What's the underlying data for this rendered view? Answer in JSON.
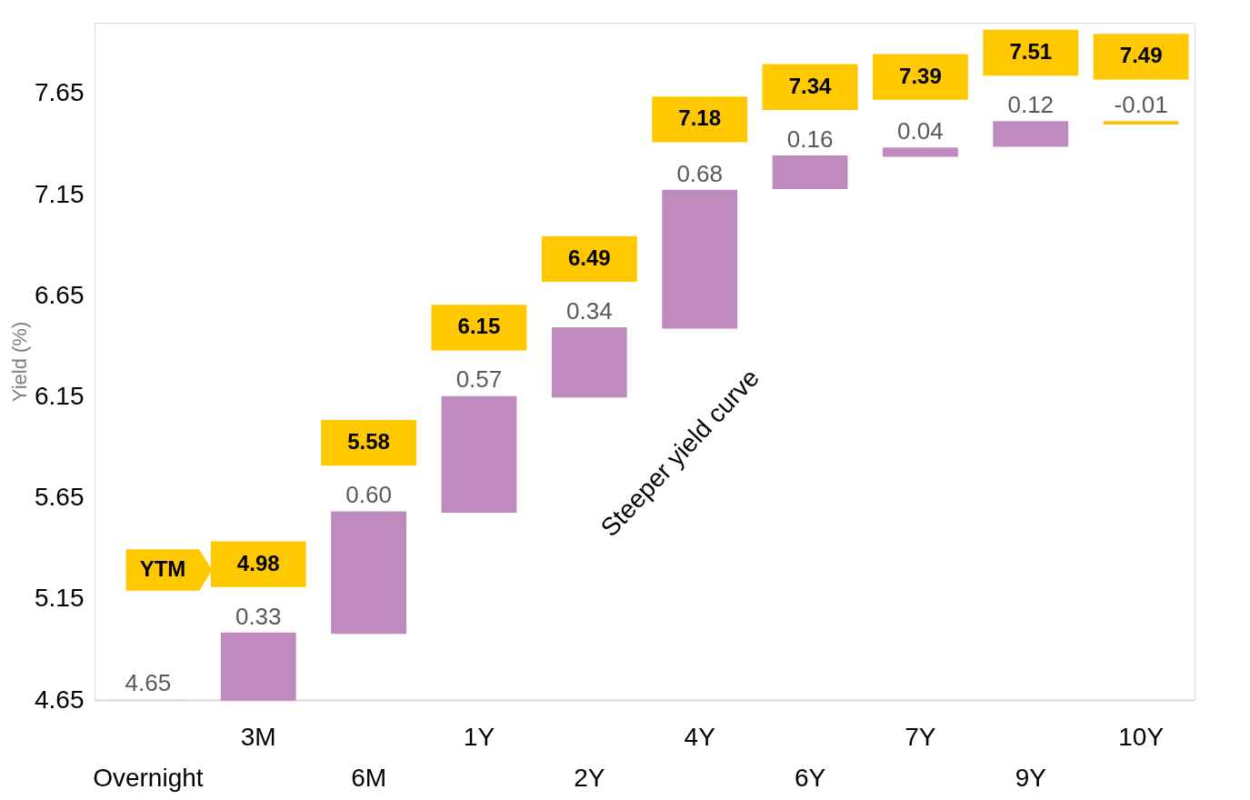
{
  "chart_data": {
    "type": "bar",
    "categories": [
      "Overnight",
      "3M",
      "6M",
      "1Y",
      "2Y",
      "4Y",
      "6Y",
      "7Y",
      "9Y",
      "10Y"
    ],
    "base": [
      4.65,
      4.65,
      4.98,
      5.58,
      6.15,
      6.49,
      7.18,
      7.34,
      7.39,
      7.51
    ],
    "values": [
      0,
      0.33,
      0.6,
      0.57,
      0.34,
      0.68,
      0.16,
      0.04,
      0.12,
      -0.01
    ],
    "colors": [
      "#d9d9d9",
      "#bf8bbf",
      "#bf8bbf",
      "#bf8bbf",
      "#bf8bbf",
      "#bf8bbf",
      "#bf8bbf",
      "#bf8bbf",
      "#bf8bbf",
      "#ffc000"
    ],
    "value_labels": [
      "4.65",
      "0.33",
      "0.60",
      "0.57",
      "0.34",
      "0.68",
      "0.16",
      "0.04",
      "0.12",
      "-0.01"
    ],
    "ylabel": "Yield (%)",
    "ylim": [
      4.65,
      8.0
    ],
    "yticks": [
      4.65,
      5.15,
      5.65,
      6.15,
      6.65,
      7.15,
      7.65
    ],
    "grid": false,
    "annotations": [
      {
        "text": "4.98",
        "x": "3M",
        "y": 4.98
      },
      {
        "text": "5.58",
        "x": "6M",
        "y": 5.58
      },
      {
        "text": "6.15",
        "x": "1Y",
        "y": 6.15
      },
      {
        "text": "6.49",
        "x": "2Y",
        "y": 6.49
      },
      {
        "text": "7.18",
        "x": "4Y",
        "y": 7.18
      },
      {
        "text": "7.34",
        "x": "6Y",
        "y": 7.34
      },
      {
        "text": "7.39",
        "x": "7Y",
        "y": 7.39
      },
      {
        "text": "7.51",
        "x": "9Y",
        "y": 7.51
      },
      {
        "text": "7.49",
        "x": "10Y",
        "y": 7.49
      },
      "YTM",
      "Steeper yield curve"
    ]
  }
}
